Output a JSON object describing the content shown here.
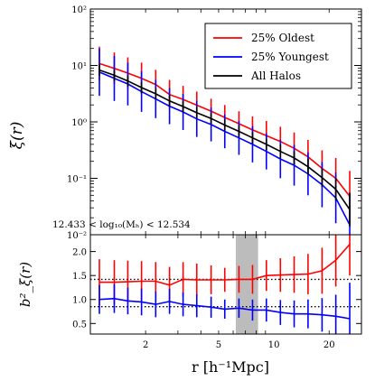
{
  "chart_data": [
    {
      "type": "line",
      "ylabel": "ξ(r)",
      "yscale": "log",
      "ylim": [
        0.01,
        100
      ],
      "ytick_labels": [
        "10⁻²",
        "10⁻¹",
        "10⁰",
        "10¹",
        "10²"
      ],
      "xscale": "log",
      "xlim": [
        1.0,
        30
      ],
      "annotation": "12.433 < log₁₀(Mₕ) < 12.534",
      "legend_position": "top-right",
      "x": [
        1.12,
        1.35,
        1.6,
        1.9,
        2.27,
        2.7,
        3.2,
        3.8,
        4.55,
        5.4,
        6.45,
        7.65,
        9.1,
        10.85,
        12.9,
        15.35,
        18.3,
        21.75,
        25.9
      ],
      "series": [
        {
          "name": "25% Oldest",
          "color": "#ff0000",
          "values": [
            10.8,
            8.9,
            7.3,
            5.9,
            4.6,
            3.05,
            2.5,
            1.98,
            1.55,
            1.2,
            0.93,
            0.72,
            0.57,
            0.45,
            0.34,
            0.24,
            0.15,
            0.1,
            0.048
          ],
          "errors": [
            0.3,
            0.28,
            0.28,
            0.28,
            0.26,
            0.26,
            0.24,
            0.24,
            0.22,
            0.22,
            0.22,
            0.24,
            0.26,
            0.26,
            0.28,
            0.3,
            0.32,
            0.36,
            0.45
          ]
        },
        {
          "name": "25% Youngest",
          "color": "#0000ff",
          "values": [
            7.6,
            5.9,
            4.7,
            3.45,
            2.55,
            1.9,
            1.5,
            1.13,
            0.9,
            0.68,
            0.52,
            0.4,
            0.3,
            0.22,
            0.17,
            0.12,
            0.077,
            0.045,
            0.015
          ],
          "errors": [
            0.42,
            0.4,
            0.38,
            0.36,
            0.34,
            0.32,
            0.32,
            0.32,
            0.3,
            0.3,
            0.3,
            0.32,
            0.32,
            0.34,
            0.36,
            0.38,
            0.4,
            0.45,
            0.55
          ]
        },
        {
          "name": "All Halos",
          "color": "#000000",
          "values": [
            8.3,
            6.7,
            5.3,
            4.05,
            3.15,
            2.35,
            1.87,
            1.45,
            1.15,
            0.88,
            0.68,
            0.52,
            0.4,
            0.3,
            0.23,
            0.16,
            0.103,
            0.064,
            0.028
          ],
          "errors": [
            0.1,
            0.1,
            0.1,
            0.1,
            0.1,
            0.1,
            0.1,
            0.1,
            0.1,
            0.1,
            0.1,
            0.1,
            0.1,
            0.12,
            0.12,
            0.14,
            0.16,
            0.2,
            0.3
          ]
        }
      ]
    },
    {
      "type": "line",
      "xlabel": "r [h⁻¹Mpc]",
      "ylabel": "b²_ξ(r)",
      "xscale": "log",
      "xlim": [
        1.0,
        30
      ],
      "ylim": [
        0.28,
        2.35
      ],
      "xtick_labels": [
        "2",
        "5",
        "10",
        "20"
      ],
      "xtick_values": [
        2,
        5,
        10,
        20
      ],
      "ytick_values": [
        0.5,
        1.0,
        1.5,
        2.0
      ],
      "ytick_labels": [
        "0.5",
        "1.0",
        "1.5",
        "2.0"
      ],
      "shaded_region_x": [
        6.2,
        8.2
      ],
      "reference_lines_y": [
        1.42,
        0.85
      ],
      "x": [
        1.12,
        1.35,
        1.6,
        1.9,
        2.27,
        2.7,
        3.2,
        3.8,
        4.55,
        5.4,
        6.45,
        7.65,
        9.1,
        10.85,
        12.9,
        15.35,
        18.3,
        21.75,
        25.9
      ],
      "series": [
        {
          "name": "25% Oldest",
          "color": "#ff0000",
          "values": [
            1.36,
            1.36,
            1.37,
            1.38,
            1.38,
            1.3,
            1.42,
            1.41,
            1.41,
            1.41,
            1.42,
            1.42,
            1.5,
            1.51,
            1.52,
            1.53,
            1.6,
            1.82,
            2.15
          ],
          "errors": [
            0.48,
            0.46,
            0.44,
            0.42,
            0.4,
            0.38,
            0.36,
            0.34,
            0.3,
            0.25,
            0.28,
            0.3,
            0.32,
            0.35,
            0.38,
            0.42,
            0.48,
            0.55,
            0.65
          ]
        },
        {
          "name": "25% Youngest",
          "color": "#0000ff",
          "values": [
            1.0,
            1.02,
            0.97,
            0.95,
            0.9,
            0.96,
            0.9,
            0.87,
            0.84,
            0.8,
            0.82,
            0.78,
            0.78,
            0.73,
            0.7,
            0.7,
            0.68,
            0.65,
            0.6
          ],
          "errors": [
            0.3,
            0.3,
            0.28,
            0.28,
            0.27,
            0.26,
            0.25,
            0.24,
            0.22,
            0.2,
            0.2,
            0.22,
            0.24,
            0.26,
            0.28,
            0.3,
            0.35,
            0.45,
            0.75
          ]
        }
      ]
    }
  ]
}
